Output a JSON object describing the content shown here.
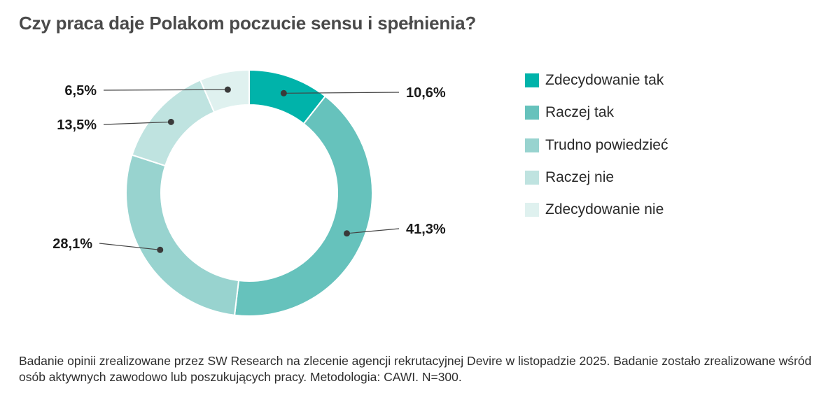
{
  "title": "Czy praca daje Polakom poczucie sensu i spełnienia?",
  "chart_data": {
    "type": "pie",
    "subtype": "donut",
    "title": "Czy praca daje Polakom poczucie sensu i spełnienia?",
    "categories": [
      "Zdecydowanie tak",
      "Raczej tak",
      "Trudno powiedzieć",
      "Raczej nie",
      "Zdecydowanie nie"
    ],
    "values": [
      10.6,
      41.3,
      28.1,
      13.5,
      6.5
    ],
    "labels": [
      "10,6%",
      "41,3%",
      "28,1%",
      "13,5%",
      "6,5%"
    ],
    "colors": [
      "#00b3aa",
      "#66c2bc",
      "#98d3cf",
      "#bfe3e0",
      "#dff1ef"
    ],
    "legend_position": "right"
  },
  "footnote": "Badanie opinii zrealizowane przez SW Research na zlecenie agencji rekrutacyjnej Devire w listopadzie 2025. Badanie zostało zrealizowane wśród osób aktywnych zawodowo lub poszukujących pracy. Metodologia: CAWI. N=300."
}
